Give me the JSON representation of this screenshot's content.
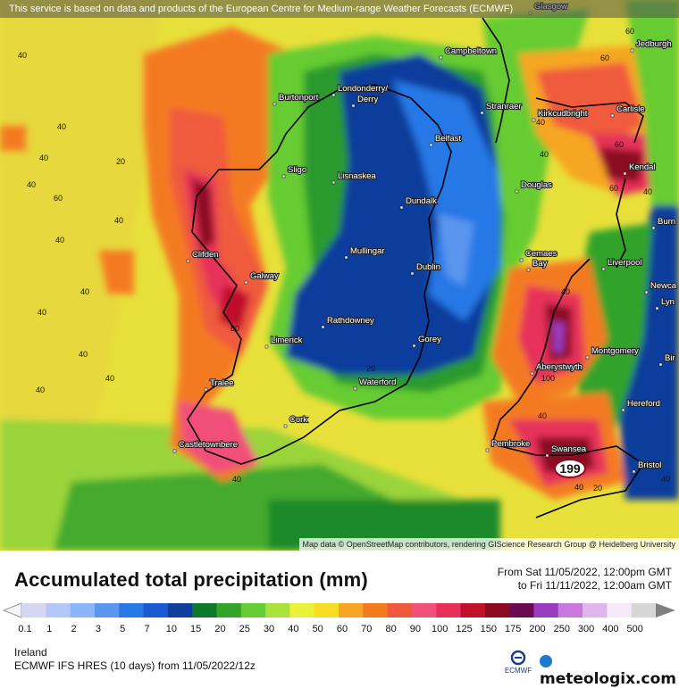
{
  "header": {
    "attribution": "This service is based on data and products of the European Centre for Medium-range Weather Forecasts (ECMWF)"
  },
  "map": {
    "attribution": "Map data © OpenStreetMap contributors, rendering GIScience Research Group @ Heidelberg University",
    "places": [
      "Glasgow",
      "Campbeltown",
      "Jedburgh",
      "Burtonport",
      "Londonderry/",
      "Derry",
      "Stranraer",
      "Kirkcudbright",
      "Carlisle",
      "Belfast",
      "Sligo",
      "Lisnaskea",
      "Douglas",
      "Kendal",
      "Clifden",
      "Dundalk",
      "Burn",
      "Mullingar",
      "Galway",
      "Cemaes",
      "Bay",
      "Liverpool",
      "Newca",
      "Lyn",
      "Dublin",
      "Rathdowney",
      "Limerick",
      "Gorey",
      "Aberystwyth",
      "Montgomery",
      "Bir",
      "Tralee",
      "Waterford",
      "Hereford",
      "Cork",
      "Pembroke",
      "Swansea",
      "Bristol",
      "Castletownbere"
    ],
    "contour_labels": [
      "60",
      "40",
      "40",
      "40",
      "40",
      "40",
      "40",
      "60",
      "60",
      "40",
      "40",
      "80",
      "40",
      "20",
      "20",
      "40",
      "100",
      "40",
      "60",
      "60",
      "20",
      "40",
      "40",
      "40",
      "40",
      "40",
      "40",
      "40",
      "40"
    ],
    "max_value": "199"
  },
  "legend": {
    "title": "Accumulated total precipitation (mm)",
    "period_from": "From Sat 11/05/2022, 12:00pm GMT",
    "period_to": "to Fri 11/11/2022, 12:00am GMT",
    "ticks": [
      "0.1",
      "1",
      "2",
      "3",
      "5",
      "7",
      "10",
      "15",
      "20",
      "25",
      "30",
      "40",
      "50",
      "60",
      "70",
      "80",
      "90",
      "100",
      "125",
      "150",
      "175",
      "200",
      "250",
      "300",
      "400",
      "500"
    ],
    "colors": [
      "#d6d6f2",
      "#b4c8f6",
      "#8cb4f8",
      "#5a96f0",
      "#2878e6",
      "#1a5ad0",
      "#103e9c",
      "#0c7a2a",
      "#33a32a",
      "#66cc33",
      "#a8e23a",
      "#e8f23a",
      "#f7dc24",
      "#f6a624",
      "#f47a20",
      "#f05a3c",
      "#f0507a",
      "#e6305a",
      "#c0102a",
      "#8c0a20",
      "#6a0a50",
      "#9a3cc0",
      "#c87adc",
      "#e0b4ec",
      "#f4eaf8",
      "#d6d6d6"
    ],
    "region": "Ireland",
    "model": "ECMWF IFS HRES (10 days) from 11/05/2022/12z"
  },
  "branding": {
    "ecmwf": "ECMWF",
    "meteologix": "meteologix.com"
  }
}
